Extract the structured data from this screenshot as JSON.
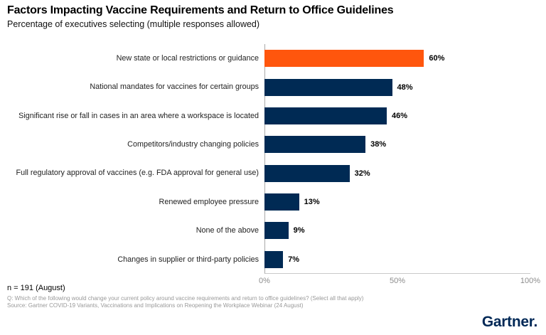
{
  "header": {
    "title": "Factors Impacting Vaccine Requirements and Return to Office Guidelines",
    "subtitle": "Percentage of executives selecting (multiple responses allowed)"
  },
  "chart_data": {
    "type": "bar",
    "orientation": "horizontal",
    "title": "Factors Impacting Vaccine Requirements and Return to Office Guidelines",
    "subtitle": "Percentage of executives selecting (multiple responses allowed)",
    "categories": [
      "New state or local restrictions or guidance",
      "National mandates for vaccines for certain groups",
      "Significant rise or fall in cases in an area where a workspace is located",
      "Competitors/industry changing policies",
      "Full regulatory approval of vaccines (e.g. FDA approval for general use)",
      "Renewed employee pressure",
      "None of the above",
      "Changes in supplier or third-party policies"
    ],
    "values": [
      60,
      48,
      46,
      38,
      32,
      13,
      9,
      7
    ],
    "value_labels": [
      "60%",
      "48%",
      "46%",
      "38%",
      "32%",
      "13%",
      "9%",
      "7%"
    ],
    "xlim": [
      0,
      100
    ],
    "x_ticks": [
      {
        "label": "0%",
        "pos": 0
      },
      {
        "label": "50%",
        "pos": 50
      },
      {
        "label": "100%",
        "pos": 100
      }
    ],
    "grid": false,
    "legend": false,
    "highlight_index": 0,
    "colors": {
      "highlight": "#FF560D",
      "bar": "#002A54",
      "axis_vertical": "#A9A9A9",
      "axis_horizontal": "#C9C9C9",
      "tick_text": "#8C8C8C",
      "value_text": "#000000"
    }
  },
  "footer": {
    "n_label": "n = 191 (August)",
    "question": "Q: Which of the following would change your current policy around vaccine requirements and return to office guidelines? (Select all that apply)",
    "source": "Source: Gartner COVID-19 Variants, Vaccinations and Implications on Reopening the Workplace Webinar (24 August)"
  },
  "logo": {
    "text": "Gartner.",
    "color": "#002856"
  }
}
